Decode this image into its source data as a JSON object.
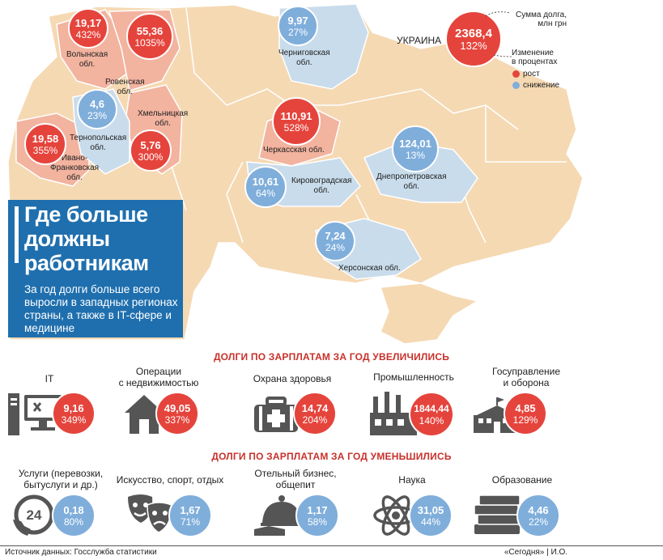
{
  "country_label": "УКРАИНА",
  "country_bubble": {
    "value": "2368,4",
    "change": "132%",
    "trend": "up"
  },
  "legend": {
    "debt_label": "Сумма долга,\nмлн грн",
    "change_label": "Изменение\nв процентах",
    "up_label": "рост",
    "down_label": "снижение",
    "up_color": "#e5443c",
    "down_color": "#7faedb"
  },
  "regions": [
    {
      "name": "Волынская\nобл.",
      "value": "19,17",
      "change": "432%",
      "trend": "up"
    },
    {
      "name": "Ровенская\nобл.",
      "value": "55,36",
      "change": "1035%",
      "trend": "up"
    },
    {
      "name": "Тернопольская\nобл.",
      "value": "4,6",
      "change": "23%",
      "trend": "down"
    },
    {
      "name": "Хмельницкая\nобл.",
      "value": "5,76",
      "change": "300%",
      "trend": "up"
    },
    {
      "name": "Ивано-\nФранковская\nобл.",
      "value": "19,58",
      "change": "355%",
      "trend": "up"
    },
    {
      "name": "Черниговская\nобл.",
      "value": "9,97",
      "change": "27%",
      "trend": "down"
    },
    {
      "name": "Черкасская обл.",
      "value": "110,91",
      "change": "528%",
      "trend": "up"
    },
    {
      "name": "Кировоградская\nобл.",
      "value": "10,61",
      "change": "64%",
      "trend": "down"
    },
    {
      "name": "Днепропетровская\nобл.",
      "value": "124,01",
      "change": "13%",
      "trend": "down"
    },
    {
      "name": "Херсонская обл.",
      "value": "7,24",
      "change": "24%",
      "trend": "down"
    }
  ],
  "headline": {
    "title": "Где больше\nдолжны\nработникам",
    "subtitle": "За год долги больше всего выросли в западных регионах страны, а также в IT-сфере и медицине"
  },
  "increased": {
    "title": "ДОЛГИ ПО ЗАРПЛАТАМ ЗА ГОД УВЕЛИЧИЛИСЬ",
    "items": [
      {
        "label": "IT",
        "icon": "computer-icon",
        "value": "9,16",
        "change": "349%"
      },
      {
        "label": "Операции\nс недвижимостью",
        "icon": "house-icon",
        "value": "49,05",
        "change": "337%"
      },
      {
        "label": "Охрана здоровья",
        "icon": "medkit-icon",
        "value": "14,74",
        "change": "204%"
      },
      {
        "label": "Промышленность",
        "icon": "factory-icon",
        "value": "1844,44",
        "change": "140%"
      },
      {
        "label": "Госуправление\nи оборона",
        "icon": "government-building-icon",
        "value": "4,85",
        "change": "129%"
      }
    ]
  },
  "decreased": {
    "title": "ДОЛГИ ПО ЗАРПЛАТАМ ЗА ГОД УМЕНЬШИЛИСЬ",
    "items": [
      {
        "label": "Услуги (перевозки,\nбытуслуги и др.)",
        "icon": "phone-24-icon",
        "value": "0,18",
        "change": "80%"
      },
      {
        "label": "Искусство, спорт, отдых",
        "icon": "theatre-masks-icon",
        "value": "1,67",
        "change": "71%"
      },
      {
        "label": "Отельный бизнес,\nобщепит",
        "icon": "cloche-icon",
        "value": "1,17",
        "change": "58%"
      },
      {
        "label": "Наука",
        "icon": "atom-icon",
        "value": "31,05",
        "change": "44%"
      },
      {
        "label": "Образование",
        "icon": "books-icon",
        "value": "4,46",
        "change": "22%"
      }
    ]
  },
  "footer": {
    "source": "Источник данных: Госслужба статистики",
    "credit": "«Сегодня» | И.О."
  }
}
